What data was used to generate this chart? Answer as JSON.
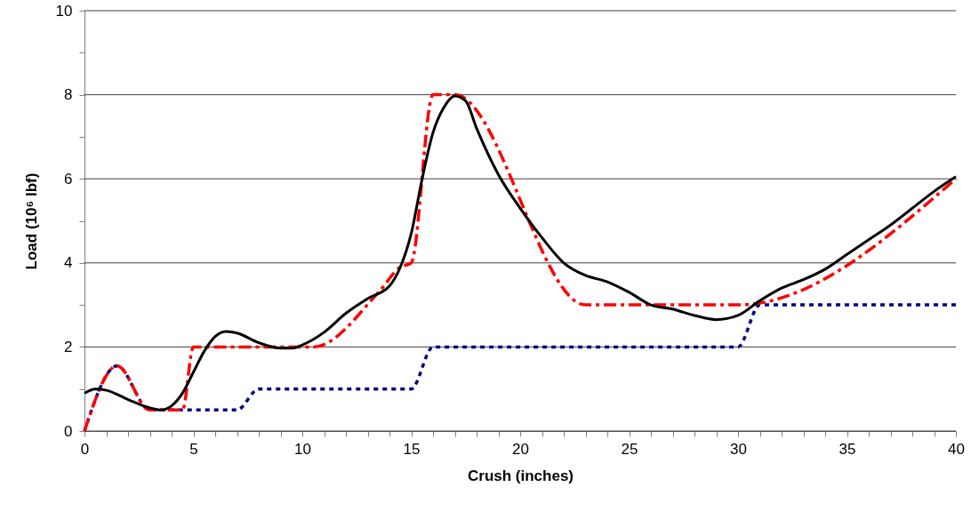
{
  "chart_data": {
    "type": "line",
    "xlabel": "Crush (inches)",
    "ylabel": "Load (10⁶ lbf)",
    "xlim": [
      0,
      40
    ],
    "ylim": [
      0,
      10
    ],
    "xticks": [
      0,
      {
        "value": 1,
        "label": null
      },
      {
        "value": 2,
        "label": null
      },
      {
        "value": 3,
        "label": null
      },
      {
        "value": 4,
        "label": null
      },
      5,
      {
        "value": 6,
        "label": null
      },
      {
        "value": 7,
        "label": null
      },
      {
        "value": 8,
        "label": null
      },
      {
        "value": 9,
        "label": null
      },
      10,
      {
        "value": 11,
        "label": null
      },
      {
        "value": 12,
        "label": null
      },
      {
        "value": 13,
        "label": null
      },
      {
        "value": 14,
        "label": null
      },
      15,
      {
        "value": 16,
        "label": null
      },
      {
        "value": 17,
        "label": null
      },
      {
        "value": 18,
        "label": null
      },
      {
        "value": 19,
        "label": null
      },
      20,
      {
        "value": 21,
        "label": null
      },
      {
        "value": 22,
        "label": null
      },
      {
        "value": 23,
        "label": null
      },
      {
        "value": 24,
        "label": null
      },
      25,
      {
        "value": 26,
        "label": null
      },
      {
        "value": 27,
        "label": null
      },
      {
        "value": 28,
        "label": null
      },
      {
        "value": 29,
        "label": null
      },
      30,
      {
        "value": 31,
        "label": null
      },
      {
        "value": 32,
        "label": null
      },
      {
        "value": 33,
        "label": null
      },
      {
        "value": 34,
        "label": null
      },
      35,
      {
        "value": 36,
        "label": null
      },
      {
        "value": 37,
        "label": null
      },
      {
        "value": 38,
        "label": null
      },
      {
        "value": 39,
        "label": null
      },
      40
    ],
    "yticks": [
      0,
      {
        "value": 1,
        "label": null
      },
      2,
      {
        "value": 3,
        "label": null
      },
      4,
      {
        "value": 5,
        "label": null
      },
      6,
      {
        "value": 7,
        "label": null
      },
      8,
      {
        "value": 9,
        "label": null
      },
      10
    ],
    "grid": "y",
    "marker": "none",
    "series": [
      {
        "color": "#000080",
        "line_style": "dotted",
        "x": [
          0,
          1.5,
          3,
          7,
          8,
          15,
          16,
          30,
          31,
          40
        ],
        "values": [
          0,
          1.55,
          0.5,
          0.5,
          1,
          1,
          2,
          2,
          3,
          3
        ]
      },
      {
        "color": "#ff0000",
        "line_style": "dashed",
        "x": [
          0,
          1.5,
          3,
          4.5,
          5,
          10.5,
          13.5,
          14.5,
          15,
          16,
          17,
          23,
          30,
          40
        ],
        "values": [
          0,
          1.55,
          0.5,
          0.5,
          2,
          2,
          3.3,
          3.9,
          4,
          8,
          8,
          3,
          3,
          6
        ]
      },
      {
        "color": "#000000",
        "line_style": "solid",
        "x": [
          0,
          0.5,
          1,
          2,
          3,
          3.5,
          4,
          4.5,
          5,
          5.5,
          6,
          6.5,
          7,
          8,
          9,
          9.5,
          10,
          11,
          12,
          13,
          14,
          14.5,
          15,
          15.5,
          16,
          16.5,
          17,
          17.5,
          18,
          19,
          20,
          21,
          22,
          23,
          24,
          25,
          26,
          27,
          28,
          29,
          30,
          31,
          32,
          33,
          34,
          35,
          36,
          37,
          38,
          39,
          40
        ],
        "values": [
          0.9,
          1.0,
          0.97,
          0.75,
          0.55,
          0.5,
          0.6,
          0.9,
          1.4,
          1.9,
          2.25,
          2.37,
          2.33,
          2.1,
          1.97,
          1.97,
          2.05,
          2.35,
          2.8,
          3.15,
          3.45,
          3.9,
          4.7,
          6,
          7.1,
          7.7,
          7.97,
          7.85,
          7.2,
          6.1,
          5.3,
          4.6,
          4.0,
          3.7,
          3.55,
          3.3,
          3.0,
          2.9,
          2.75,
          2.65,
          2.75,
          3.1,
          3.4,
          3.6,
          3.85,
          4.2,
          4.55,
          4.9,
          5.3,
          5.7,
          6.05
        ]
      }
    ]
  }
}
